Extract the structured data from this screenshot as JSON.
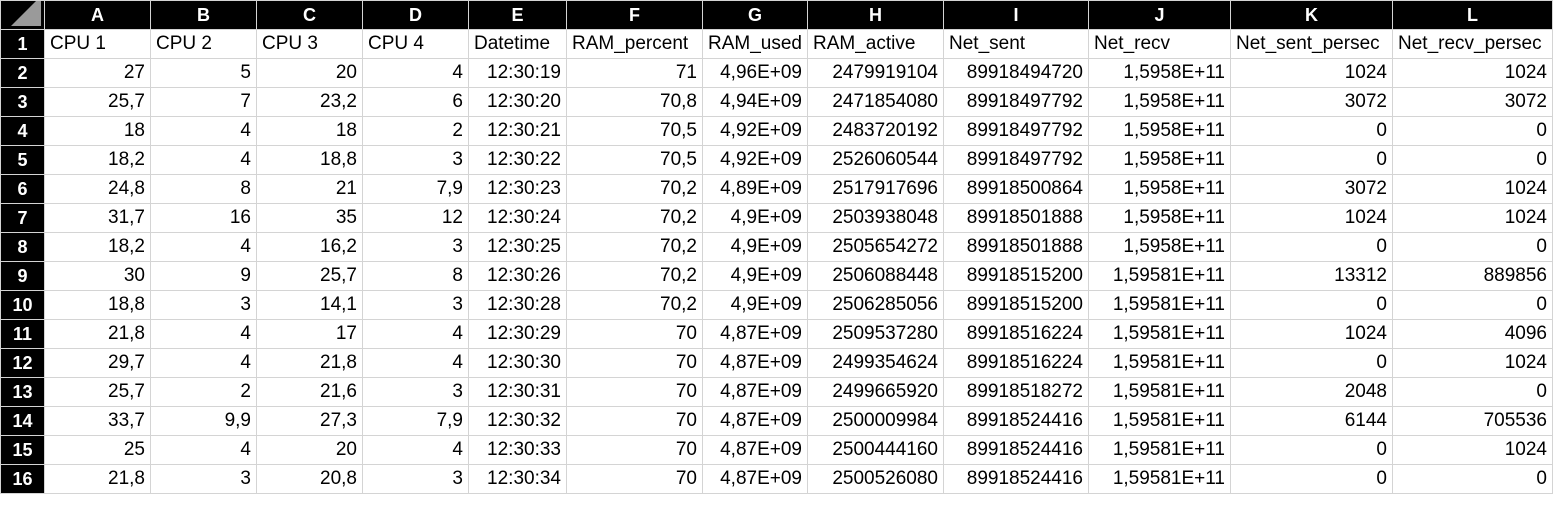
{
  "columns": [
    "A",
    "B",
    "C",
    "D",
    "E",
    "F",
    "G",
    "H",
    "I",
    "J",
    "K",
    "L"
  ],
  "header_row": {
    "row_number": "1",
    "cells": [
      "CPU 1",
      "CPU 2",
      "CPU 3",
      "CPU 4",
      "Datetime",
      "RAM_percent",
      "RAM_used",
      "RAM_active",
      "Net_sent",
      "Net_recv",
      "Net_sent_persec",
      "Net_recv_persec"
    ]
  },
  "rows": [
    {
      "n": "2",
      "cells": [
        "27",
        "5",
        "20",
        "4",
        "12:30:19",
        "71",
        "4,96E+09",
        "2479919104",
        "89918494720",
        "1,5958E+11",
        "1024",
        "1024"
      ]
    },
    {
      "n": "3",
      "cells": [
        "25,7",
        "7",
        "23,2",
        "6",
        "12:30:20",
        "70,8",
        "4,94E+09",
        "2471854080",
        "89918497792",
        "1,5958E+11",
        "3072",
        "3072"
      ]
    },
    {
      "n": "4",
      "cells": [
        "18",
        "4",
        "18",
        "2",
        "12:30:21",
        "70,5",
        "4,92E+09",
        "2483720192",
        "89918497792",
        "1,5958E+11",
        "0",
        "0"
      ]
    },
    {
      "n": "5",
      "cells": [
        "18,2",
        "4",
        "18,8",
        "3",
        "12:30:22",
        "70,5",
        "4,92E+09",
        "2526060544",
        "89918497792",
        "1,5958E+11",
        "0",
        "0"
      ]
    },
    {
      "n": "6",
      "cells": [
        "24,8",
        "8",
        "21",
        "7,9",
        "12:30:23",
        "70,2",
        "4,89E+09",
        "2517917696",
        "89918500864",
        "1,5958E+11",
        "3072",
        "1024"
      ]
    },
    {
      "n": "7",
      "cells": [
        "31,7",
        "16",
        "35",
        "12",
        "12:30:24",
        "70,2",
        "4,9E+09",
        "2503938048",
        "89918501888",
        "1,5958E+11",
        "1024",
        "1024"
      ]
    },
    {
      "n": "8",
      "cells": [
        "18,2",
        "4",
        "16,2",
        "3",
        "12:30:25",
        "70,2",
        "4,9E+09",
        "2505654272",
        "89918501888",
        "1,5958E+11",
        "0",
        "0"
      ]
    },
    {
      "n": "9",
      "cells": [
        "30",
        "9",
        "25,7",
        "8",
        "12:30:26",
        "70,2",
        "4,9E+09",
        "2506088448",
        "89918515200",
        "1,59581E+11",
        "13312",
        "889856"
      ]
    },
    {
      "n": "10",
      "cells": [
        "18,8",
        "3",
        "14,1",
        "3",
        "12:30:28",
        "70,2",
        "4,9E+09",
        "2506285056",
        "89918515200",
        "1,59581E+11",
        "0",
        "0"
      ]
    },
    {
      "n": "11",
      "cells": [
        "21,8",
        "4",
        "17",
        "4",
        "12:30:29",
        "70",
        "4,87E+09",
        "2509537280",
        "89918516224",
        "1,59581E+11",
        "1024",
        "4096"
      ]
    },
    {
      "n": "12",
      "cells": [
        "29,7",
        "4",
        "21,8",
        "4",
        "12:30:30",
        "70",
        "4,87E+09",
        "2499354624",
        "89918516224",
        "1,59581E+11",
        "0",
        "1024"
      ]
    },
    {
      "n": "13",
      "cells": [
        "25,7",
        "2",
        "21,6",
        "3",
        "12:30:31",
        "70",
        "4,87E+09",
        "2499665920",
        "89918518272",
        "1,59581E+11",
        "2048",
        "0"
      ]
    },
    {
      "n": "14",
      "cells": [
        "33,7",
        "9,9",
        "27,3",
        "7,9",
        "12:30:32",
        "70",
        "4,87E+09",
        "2500009984",
        "89918524416",
        "1,59581E+11",
        "6144",
        "705536"
      ]
    },
    {
      "n": "15",
      "cells": [
        "25",
        "4",
        "20",
        "4",
        "12:30:33",
        "70",
        "4,87E+09",
        "2500444160",
        "89918524416",
        "1,59581E+11",
        "0",
        "1024"
      ]
    },
    {
      "n": "16",
      "cells": [
        "21,8",
        "3",
        "20,8",
        "3",
        "12:30:34",
        "70",
        "4,87E+09",
        "2500526080",
        "89918524416",
        "1,59581E+11",
        "0",
        "0"
      ]
    }
  ]
}
